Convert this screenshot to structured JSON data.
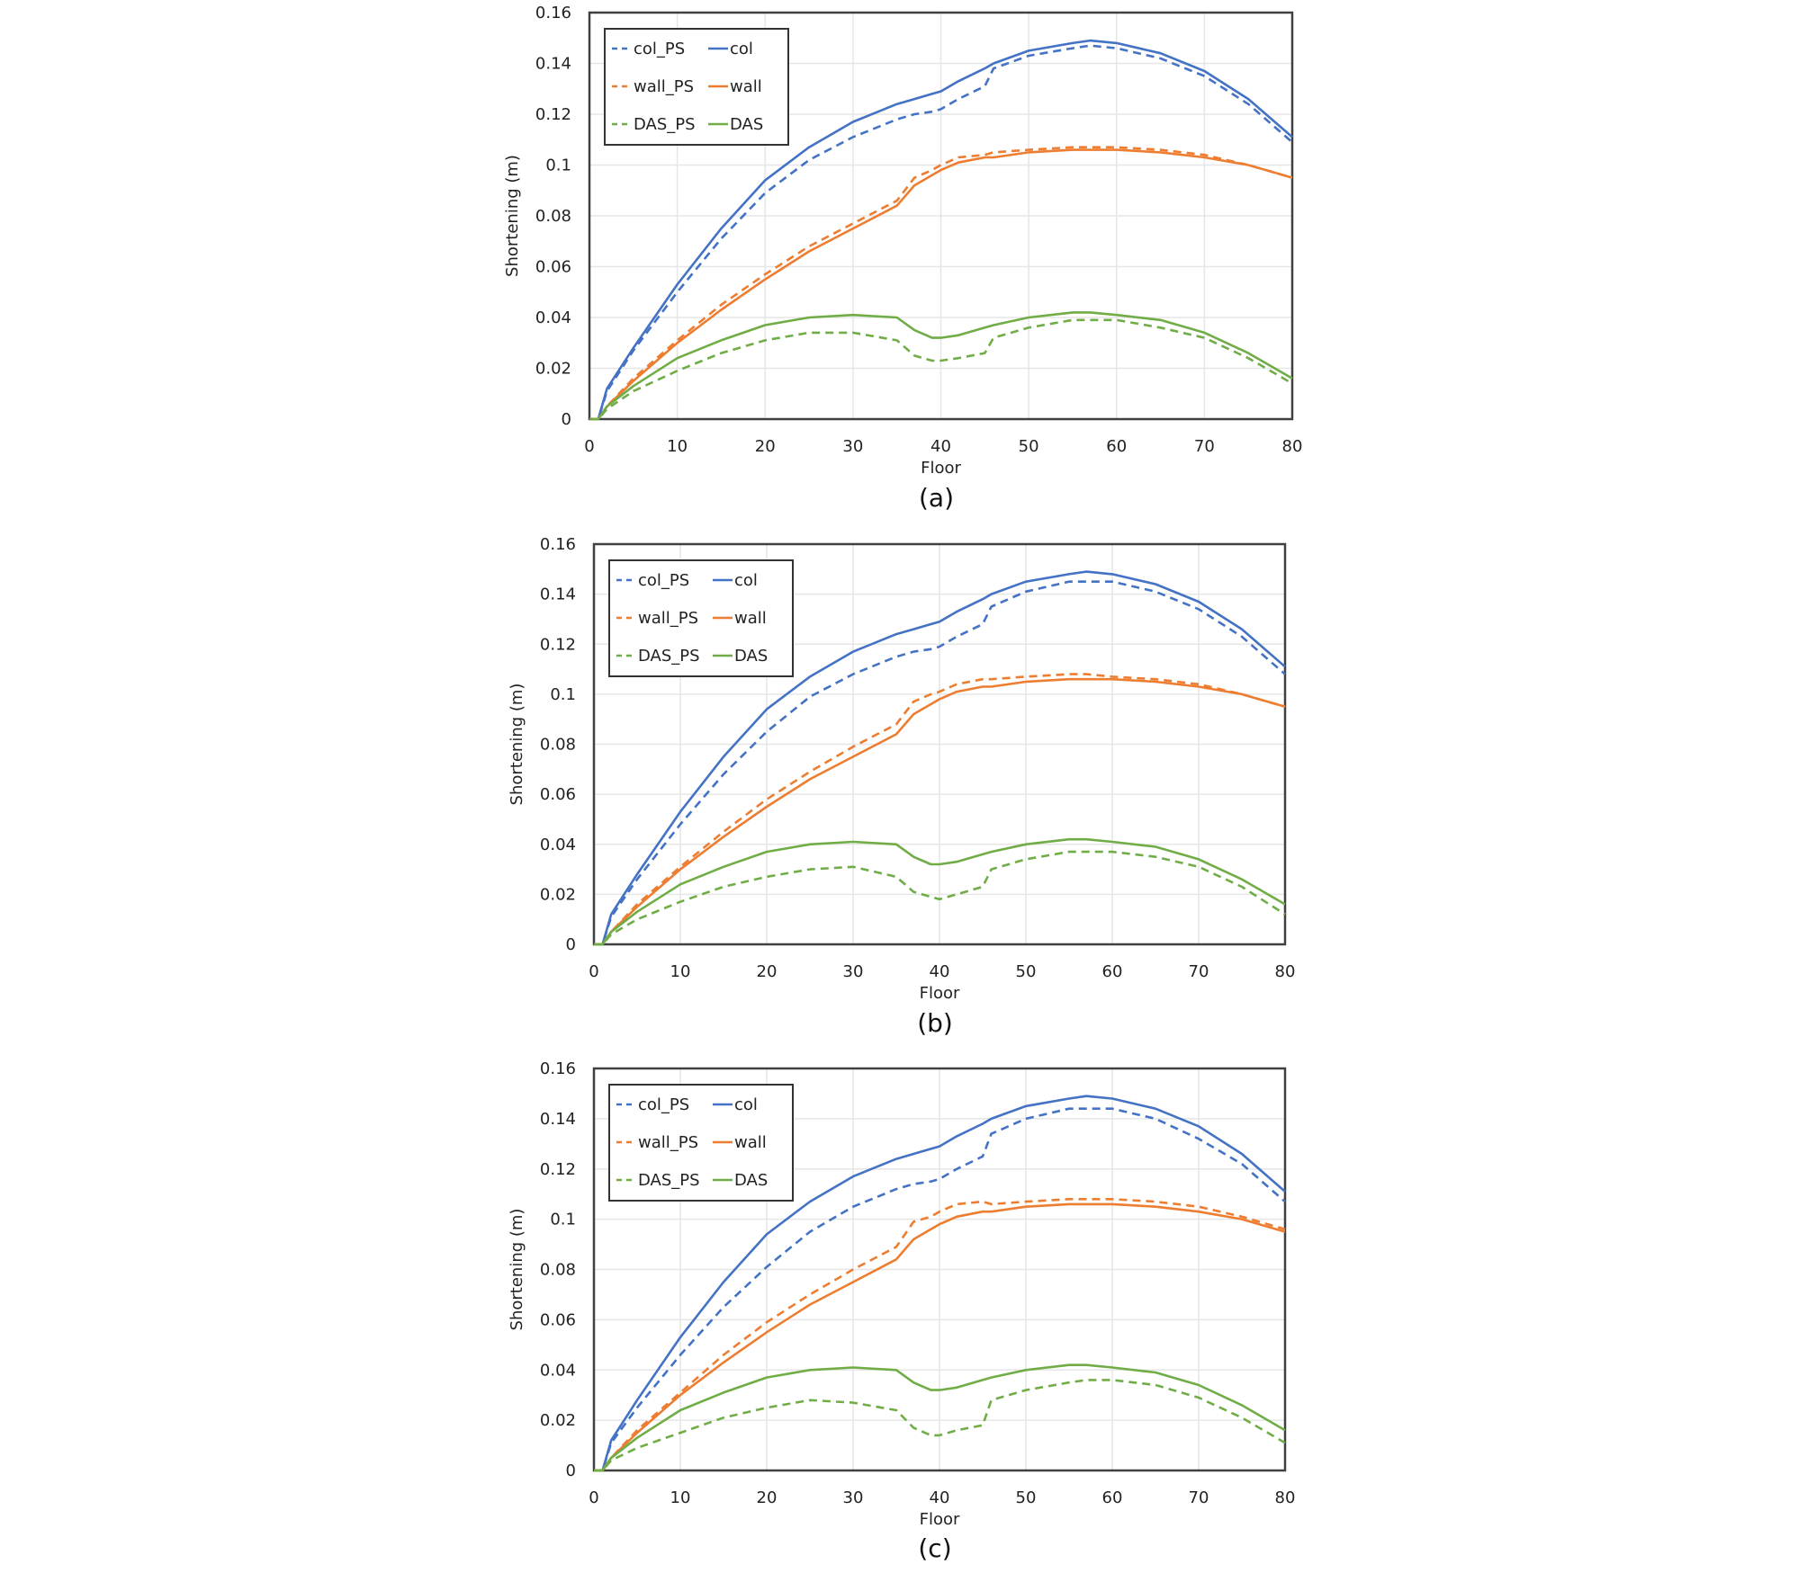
{
  "colors": {
    "col": "#4472C4",
    "wall": "#ED7D31",
    "DAS": "#70AD47",
    "grid": "#E6E6E6",
    "axis": "#404040"
  },
  "chart_data": [
    {
      "type": "line",
      "caption": "(a)",
      "xlabel": "Floor",
      "ylabel": "Shortening (m)",
      "xlim": [
        0,
        80
      ],
      "ylim": [
        0,
        0.16
      ],
      "xticks": [
        "0",
        "10",
        "20",
        "30",
        "40",
        "50",
        "60",
        "70",
        "80"
      ],
      "yticks": [
        "0",
        "0.02",
        "0.04",
        "0.06",
        "0.08",
        "0.1",
        "0.12",
        "0.14",
        "0.16"
      ],
      "grid": true,
      "legend": "top-left",
      "x": [
        0,
        1,
        2,
        5,
        10,
        15,
        20,
        25,
        30,
        35,
        37,
        39,
        40,
        42,
        45,
        46,
        50,
        55,
        57,
        60,
        65,
        70,
        75,
        80
      ],
      "series": [
        {
          "name": "col_PS",
          "color": "col",
          "dashed": true,
          "values": [
            0,
            0,
            0.011,
            0.027,
            0.05,
            0.071,
            0.089,
            0.102,
            0.111,
            0.118,
            0.12,
            0.121,
            0.122,
            0.126,
            0.131,
            0.138,
            0.143,
            0.146,
            0.147,
            0.146,
            0.142,
            0.135,
            0.124,
            0.109
          ]
        },
        {
          "name": "col",
          "color": "col",
          "dashed": false,
          "values": [
            0,
            0,
            0.012,
            0.028,
            0.053,
            0.075,
            0.094,
            0.107,
            0.117,
            0.124,
            0.126,
            0.128,
            0.129,
            0.133,
            0.138,
            0.14,
            0.145,
            0.148,
            0.149,
            0.148,
            0.144,
            0.137,
            0.126,
            0.111
          ]
        },
        {
          "name": "wall_PS",
          "color": "wall",
          "dashed": true,
          "values": [
            0,
            0,
            0.005,
            0.016,
            0.031,
            0.045,
            0.057,
            0.068,
            0.077,
            0.086,
            0.095,
            0.098,
            0.1,
            0.103,
            0.104,
            0.105,
            0.106,
            0.107,
            0.107,
            0.107,
            0.106,
            0.104,
            0.1,
            0.095
          ]
        },
        {
          "name": "wall",
          "color": "wall",
          "dashed": false,
          "values": [
            0,
            0,
            0.005,
            0.015,
            0.03,
            0.043,
            0.055,
            0.066,
            0.075,
            0.084,
            0.092,
            0.096,
            0.098,
            0.101,
            0.103,
            0.103,
            0.105,
            0.106,
            0.106,
            0.106,
            0.105,
            0.103,
            0.1,
            0.095
          ]
        },
        {
          "name": "DAS_PS",
          "color": "DAS",
          "dashed": true,
          "values": [
            0,
            0,
            0.004,
            0.011,
            0.019,
            0.026,
            0.031,
            0.034,
            0.034,
            0.031,
            0.025,
            0.023,
            0.023,
            0.024,
            0.026,
            0.032,
            0.036,
            0.039,
            0.039,
            0.039,
            0.036,
            0.032,
            0.024,
            0.014
          ]
        },
        {
          "name": "DAS",
          "color": "DAS",
          "dashed": false,
          "values": [
            0,
            0,
            0.005,
            0.013,
            0.024,
            0.031,
            0.037,
            0.04,
            0.041,
            0.04,
            0.035,
            0.032,
            0.032,
            0.033,
            0.036,
            0.037,
            0.04,
            0.042,
            0.042,
            0.041,
            0.039,
            0.034,
            0.026,
            0.016
          ]
        }
      ]
    },
    {
      "type": "line",
      "caption": "(b)",
      "xlabel": "Floor",
      "ylabel": "Shortening (m)",
      "xlim": [
        0,
        80
      ],
      "ylim": [
        0,
        0.16
      ],
      "xticks": [
        "0",
        "10",
        "20",
        "30",
        "40",
        "50",
        "60",
        "70",
        "80"
      ],
      "yticks": [
        "0",
        "0.02",
        "0.04",
        "0.06",
        "0.08",
        "0.1",
        "0.12",
        "0.14",
        "0.16"
      ],
      "grid": true,
      "legend": "top-left",
      "x": [
        0,
        1,
        2,
        5,
        10,
        15,
        20,
        25,
        30,
        35,
        37,
        39,
        40,
        42,
        45,
        46,
        50,
        55,
        57,
        60,
        65,
        70,
        75,
        80
      ],
      "series": [
        {
          "name": "col_PS",
          "color": "col",
          "dashed": true,
          "values": [
            0,
            0,
            0.011,
            0.026,
            0.048,
            0.068,
            0.085,
            0.099,
            0.108,
            0.115,
            0.117,
            0.118,
            0.119,
            0.123,
            0.128,
            0.135,
            0.141,
            0.145,
            0.145,
            0.145,
            0.141,
            0.134,
            0.123,
            0.108
          ]
        },
        {
          "name": "col",
          "color": "col",
          "dashed": false,
          "values": [
            0,
            0,
            0.012,
            0.028,
            0.053,
            0.075,
            0.094,
            0.107,
            0.117,
            0.124,
            0.126,
            0.128,
            0.129,
            0.133,
            0.138,
            0.14,
            0.145,
            0.148,
            0.149,
            0.148,
            0.144,
            0.137,
            0.126,
            0.111
          ]
        },
        {
          "name": "wall_PS",
          "color": "wall",
          "dashed": true,
          "values": [
            0,
            0,
            0.005,
            0.016,
            0.031,
            0.045,
            0.058,
            0.069,
            0.079,
            0.088,
            0.097,
            0.1,
            0.101,
            0.104,
            0.106,
            0.106,
            0.107,
            0.108,
            0.108,
            0.107,
            0.106,
            0.104,
            0.1,
            0.095
          ]
        },
        {
          "name": "wall",
          "color": "wall",
          "dashed": false,
          "values": [
            0,
            0,
            0.005,
            0.015,
            0.03,
            0.043,
            0.055,
            0.066,
            0.075,
            0.084,
            0.092,
            0.096,
            0.098,
            0.101,
            0.103,
            0.103,
            0.105,
            0.106,
            0.106,
            0.106,
            0.105,
            0.103,
            0.1,
            0.095
          ]
        },
        {
          "name": "DAS_PS",
          "color": "DAS",
          "dashed": true,
          "values": [
            0,
            0,
            0.004,
            0.01,
            0.017,
            0.023,
            0.027,
            0.03,
            0.031,
            0.027,
            0.021,
            0.019,
            0.018,
            0.02,
            0.023,
            0.03,
            0.034,
            0.037,
            0.037,
            0.037,
            0.035,
            0.031,
            0.023,
            0.012
          ]
        },
        {
          "name": "DAS",
          "color": "DAS",
          "dashed": false,
          "values": [
            0,
            0,
            0.005,
            0.013,
            0.024,
            0.031,
            0.037,
            0.04,
            0.041,
            0.04,
            0.035,
            0.032,
            0.032,
            0.033,
            0.036,
            0.037,
            0.04,
            0.042,
            0.042,
            0.041,
            0.039,
            0.034,
            0.026,
            0.016
          ]
        }
      ]
    },
    {
      "type": "line",
      "caption": "(c)",
      "xlabel": "Floor",
      "ylabel": "Shortening (m)",
      "xlim": [
        0,
        80
      ],
      "ylim": [
        0,
        0.16
      ],
      "xticks": [
        "0",
        "10",
        "20",
        "30",
        "40",
        "50",
        "60",
        "70",
        "80"
      ],
      "yticks": [
        "0",
        "0.02",
        "0.04",
        "0.06",
        "0.08",
        "0.1",
        "0.12",
        "0.14",
        "0.16"
      ],
      "grid": true,
      "legend": "top-left",
      "x": [
        0,
        1,
        2,
        5,
        10,
        15,
        20,
        25,
        30,
        35,
        37,
        39,
        40,
        42,
        45,
        46,
        50,
        55,
        57,
        60,
        65,
        70,
        75,
        80
      ],
      "series": [
        {
          "name": "col_PS",
          "color": "col",
          "dashed": true,
          "values": [
            0,
            0,
            0.011,
            0.025,
            0.046,
            0.065,
            0.081,
            0.095,
            0.105,
            0.112,
            0.114,
            0.115,
            0.116,
            0.12,
            0.125,
            0.134,
            0.14,
            0.144,
            0.144,
            0.144,
            0.14,
            0.132,
            0.122,
            0.107
          ]
        },
        {
          "name": "col",
          "color": "col",
          "dashed": false,
          "values": [
            0,
            0,
            0.012,
            0.028,
            0.053,
            0.075,
            0.094,
            0.107,
            0.117,
            0.124,
            0.126,
            0.128,
            0.129,
            0.133,
            0.138,
            0.14,
            0.145,
            0.148,
            0.149,
            0.148,
            0.144,
            0.137,
            0.126,
            0.111
          ]
        },
        {
          "name": "wall_PS",
          "color": "wall",
          "dashed": true,
          "values": [
            0,
            0,
            0.005,
            0.016,
            0.031,
            0.046,
            0.059,
            0.07,
            0.08,
            0.089,
            0.099,
            0.101,
            0.103,
            0.106,
            0.107,
            0.106,
            0.107,
            0.108,
            0.108,
            0.108,
            0.107,
            0.105,
            0.101,
            0.096
          ]
        },
        {
          "name": "wall",
          "color": "wall",
          "dashed": false,
          "values": [
            0,
            0,
            0.005,
            0.015,
            0.03,
            0.043,
            0.055,
            0.066,
            0.075,
            0.084,
            0.092,
            0.096,
            0.098,
            0.101,
            0.103,
            0.103,
            0.105,
            0.106,
            0.106,
            0.106,
            0.105,
            0.103,
            0.1,
            0.095
          ]
        },
        {
          "name": "DAS_PS",
          "color": "DAS",
          "dashed": true,
          "values": [
            0,
            0,
            0.004,
            0.009,
            0.015,
            0.021,
            0.025,
            0.028,
            0.027,
            0.024,
            0.017,
            0.014,
            0.014,
            0.016,
            0.018,
            0.028,
            0.032,
            0.035,
            0.036,
            0.036,
            0.034,
            0.029,
            0.021,
            0.011
          ]
        },
        {
          "name": "DAS",
          "color": "DAS",
          "dashed": false,
          "values": [
            0,
            0,
            0.005,
            0.013,
            0.024,
            0.031,
            0.037,
            0.04,
            0.041,
            0.04,
            0.035,
            0.032,
            0.032,
            0.033,
            0.036,
            0.037,
            0.04,
            0.042,
            0.042,
            0.041,
            0.039,
            0.034,
            0.026,
            0.016
          ]
        }
      ]
    }
  ]
}
